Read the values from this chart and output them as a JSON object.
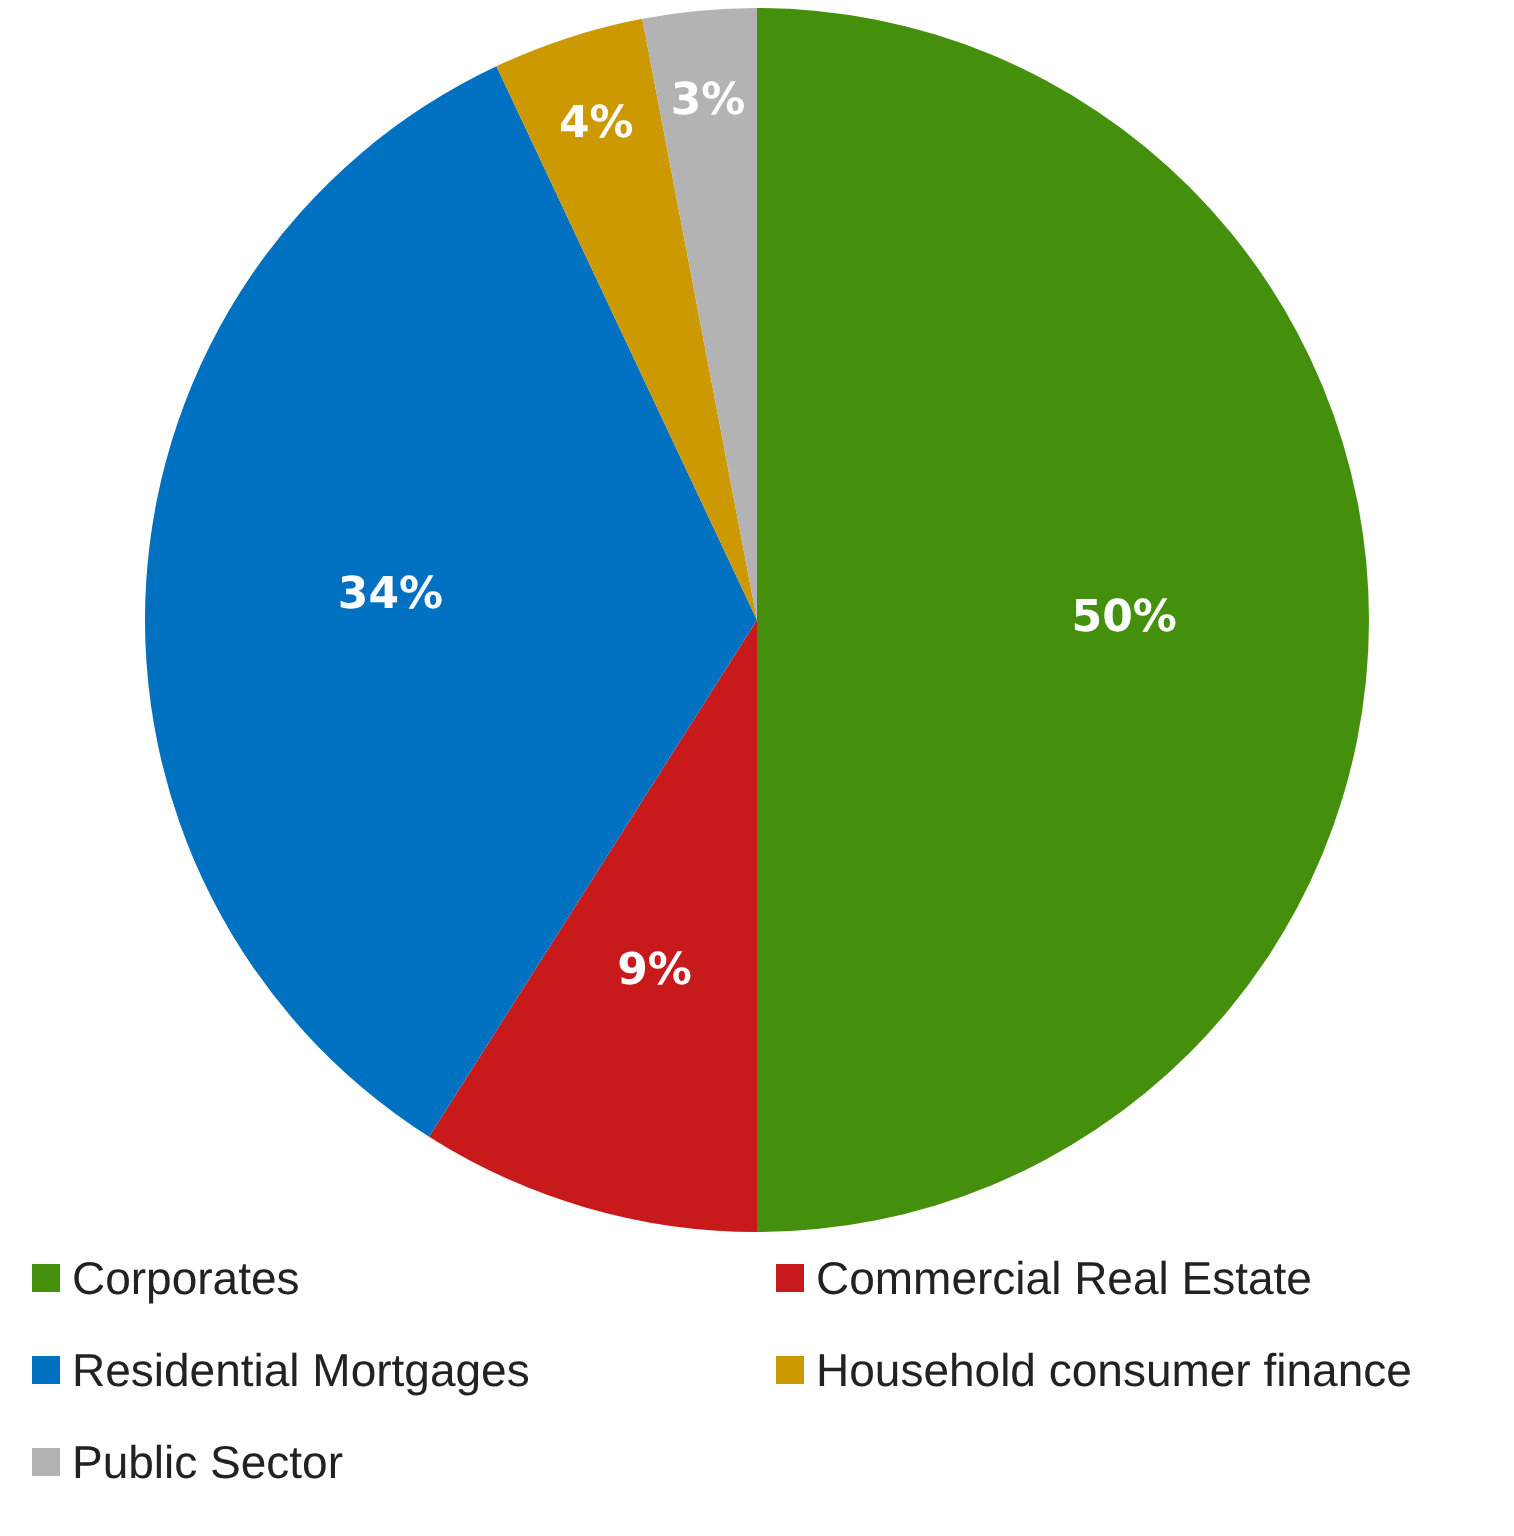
{
  "chart_data": {
    "type": "pie",
    "categories": [
      "Corporates",
      "Commercial Real Estate",
      "Residential Mortgages",
      "Household consumer finance",
      "Public Sector"
    ],
    "values": [
      50,
      9,
      34,
      4,
      3
    ],
    "colors": [
      "#44900c",
      "#c8191b",
      "#0070c0",
      "#cc9900",
      "#b3b3b3"
    ],
    "value_labels": [
      "50%",
      "9%",
      "34%",
      "4%",
      "3%"
    ],
    "legend": "bottom"
  }
}
